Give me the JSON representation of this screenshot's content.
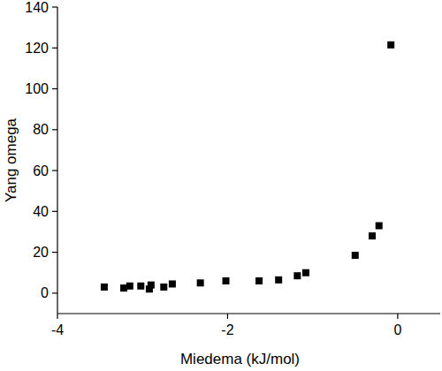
{
  "chart_data": {
    "type": "scatter",
    "x_label": "Miedema (kJ/mol)",
    "y_label": "Yang omega",
    "x": [
      -3.45,
      -3.22,
      -3.15,
      -3.02,
      -2.92,
      -2.9,
      -2.75,
      -2.65,
      -2.32,
      -2.02,
      -1.63,
      -1.4,
      -1.18,
      -1.08,
      -0.5,
      -0.3,
      -0.22,
      -0.08
    ],
    "values": [
      3,
      2.5,
      3.5,
      3.5,
      2,
      4,
      3,
      4.5,
      5,
      6,
      6,
      6.5,
      8.5,
      10,
      18.5,
      28,
      33,
      121.5
    ],
    "color": "#000000",
    "marker": "square",
    "xlim": [
      -4,
      0.5
    ],
    "xticks": [
      -4,
      -2,
      0
    ],
    "ylim": [
      -10,
      140
    ],
    "yticks": [
      0,
      20,
      40,
      60,
      80,
      100,
      120,
      140
    ],
    "grid": false
  }
}
